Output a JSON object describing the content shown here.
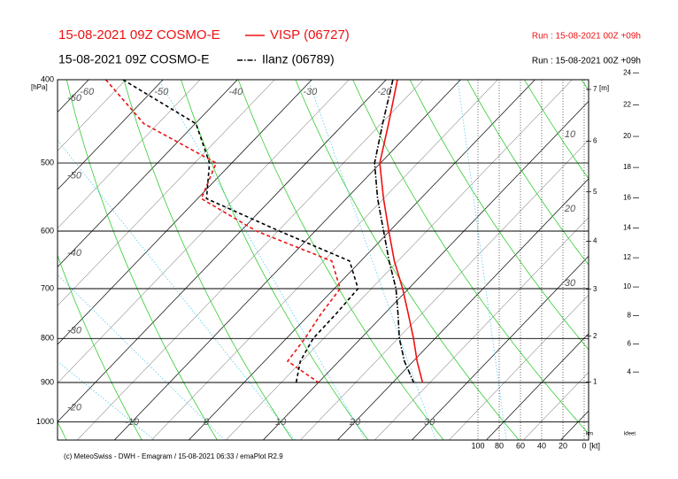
{
  "chart_data": {
    "type": "line",
    "stations": [
      {
        "title": "15-08-2021 09Z COSMO-E",
        "name": "VISP (06727)",
        "run": "Run : 15-08-2021 00Z +09h",
        "color": "#ee1111",
        "temperature": [
          -18.5,
          -14,
          -10.1,
          -5,
          -0.1,
          4.5,
          9.2,
          13.3,
          17.1,
          20.5,
          24.0
        ],
        "dewpoint": [
          -57.7,
          -46.9,
          -32.1,
          -29.5,
          -17.9,
          -3.9,
          0.8,
          1.5,
          2.5,
          3.1,
          10.0
        ]
      },
      {
        "title": "15-08-2021 09Z COSMO-E",
        "name": "Ilanz (06789)",
        "run": "Run : 15-08-2021 00Z +09h",
        "color": "#000000",
        "temperature": [
          -19.1,
          -14.8,
          -10.8,
          -5.8,
          -0.8,
          3.8,
          8.3,
          11.9,
          15.2,
          18.8,
          22.8
        ],
        "dewpoint": [
          -55.4,
          -39.9,
          -33.0,
          -28.8,
          -14.8,
          -1.5,
          3.2,
          3.5,
          3.6,
          4.8,
          7.0
        ]
      }
    ],
    "pressure": [
      400,
      450,
      500,
      550,
      600,
      650,
      700,
      750,
      800,
      850,
      900
    ],
    "ylabel": "[hPa]",
    "ylim": [
      1050,
      400
    ],
    "yticks": [
      400,
      500,
      600,
      700,
      800,
      900,
      1000
    ],
    "log_y": true,
    "xlim": [
      -20,
      51.4
    ],
    "xticks": [
      -10,
      0,
      10,
      20,
      30
    ],
    "xticks_top": [
      -60,
      -50,
      -40,
      -30,
      -20
    ],
    "isotherm_labels_left": [
      -60,
      -50,
      -40,
      -30,
      -20
    ],
    "adiabat_labels": [
      10,
      20,
      30
    ],
    "height_label": "[m]",
    "km_label": "km",
    "km_ticks": [
      1,
      2,
      3,
      4,
      5,
      6,
      7
    ],
    "kfeet_label": "kfeet",
    "kfeet_ticks": [
      4,
      6,
      8,
      10,
      12,
      14,
      16,
      18,
      20,
      22,
      24
    ],
    "wind_label": "[kt]",
    "wind_xlim": [
      100,
      0
    ],
    "wind_ticks": [
      100,
      80,
      60,
      40,
      20,
      0
    ],
    "footer": "(c) MeteoSwiss - DWH - Emagram / 15-08-2021 06:33 / emaPlot R2.9"
  }
}
